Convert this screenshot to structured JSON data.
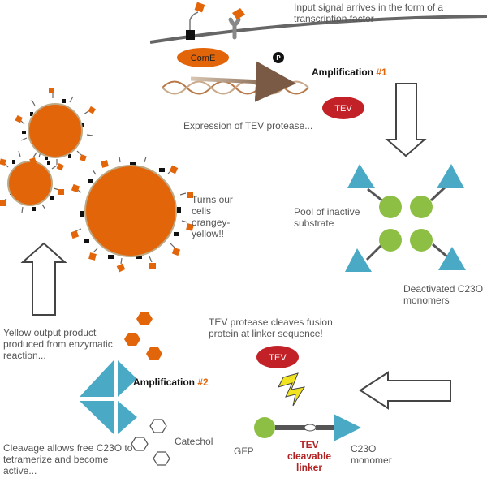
{
  "texts": {
    "input_signal": "Input signal arrives in the form of a transcription factor",
    "come": "ComE",
    "phospho": "P",
    "amplification_label": "Amplification",
    "amp1_num": "#1",
    "tev_top": "TEV",
    "expression": "Expression of TEV protease...",
    "pool": "Pool of inactive substrate",
    "deactivated": "Deactivated C23O monomers",
    "tev_cleaves": "TEV protease cleaves fusion protein at linker sequence!",
    "tev_mid": "TEV",
    "gfp": "GFP",
    "tev_linker": "TEV cleavable linker",
    "c23o_monomer": "C23O monomer",
    "catechol": "Catechol",
    "amp2_num": "#2",
    "yellow_output": "Yellow output product produced from enzymatic reaction...",
    "cleavage": "Cleavage allows free C23O to tetramerize and become active...",
    "turns": "Turns our cells orangey-yellow!!"
  },
  "colors": {
    "orange": "#e3650a",
    "teal": "#4aaac5",
    "green": "#8dbf45",
    "tev_red": "#c22227",
    "text_gray": "#555555"
  }
}
